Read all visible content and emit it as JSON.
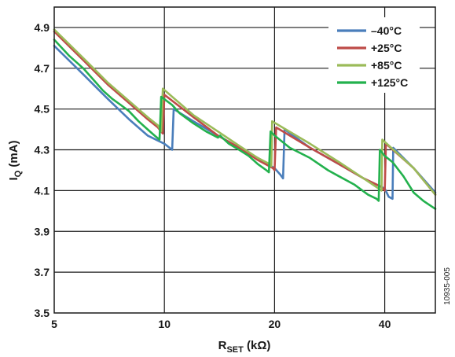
{
  "figure_id": "10935-005",
  "chart_data": {
    "type": "line",
    "title": "",
    "xlabel": {
      "main": "R",
      "sub": "SET",
      "unit": " (kΩ)"
    },
    "ylabel": {
      "main": "I",
      "sub": "Q",
      "unit": " (mA)"
    },
    "x_scale": "log2",
    "xlim": [
      5,
      55
    ],
    "ylim": [
      3.5,
      5.0
    ],
    "x_tick_labels": [
      "5",
      "10",
      "20",
      "40"
    ],
    "x_ticks": [
      5,
      10,
      20,
      40
    ],
    "y_tick_labels": [
      "3.5",
      "3.7",
      "3.9",
      "4.1",
      "4.3",
      "4.5",
      "4.7",
      "4.9"
    ],
    "y_ticks": [
      3.5,
      3.7,
      3.9,
      4.1,
      4.3,
      4.5,
      4.7,
      4.9
    ],
    "grid": true,
    "legend_position": "top-right",
    "series": [
      {
        "name": "–40°C",
        "color": "#4a7ebb",
        "points": [
          [
            5,
            4.81
          ],
          [
            6,
            4.67
          ],
          [
            7,
            4.55
          ],
          [
            8,
            4.45
          ],
          [
            9,
            4.37
          ],
          [
            10,
            4.33
          ],
          [
            10.5,
            4.3
          ],
          [
            10.6,
            4.5
          ],
          [
            12,
            4.44
          ],
          [
            14,
            4.37
          ],
          [
            16,
            4.31
          ],
          [
            18,
            4.26
          ],
          [
            20,
            4.21
          ],
          [
            20.7,
            4.18
          ],
          [
            21.1,
            4.16
          ],
          [
            21.3,
            4.4
          ],
          [
            25,
            4.31
          ],
          [
            30,
            4.23
          ],
          [
            35,
            4.16
          ],
          [
            40,
            4.11
          ],
          [
            41,
            4.07
          ],
          [
            42,
            4.06
          ],
          [
            42.2,
            4.31
          ],
          [
            48,
            4.21
          ],
          [
            55,
            4.09
          ]
        ]
      },
      {
        "name": "+25°C",
        "color": "#be4b48",
        "points": [
          [
            5,
            4.88
          ],
          [
            6,
            4.74
          ],
          [
            7,
            4.62
          ],
          [
            8,
            4.53
          ],
          [
            9,
            4.45
          ],
          [
            9.6,
            4.41
          ],
          [
            9.9,
            4.38
          ],
          [
            10,
            4.57
          ],
          [
            12,
            4.46
          ],
          [
            14,
            4.37
          ],
          [
            16,
            4.31
          ],
          [
            18,
            4.25
          ],
          [
            19.8,
            4.21
          ],
          [
            20,
            4.2
          ],
          [
            20.2,
            4.41
          ],
          [
            25,
            4.31
          ],
          [
            30,
            4.23
          ],
          [
            35,
            4.16
          ],
          [
            39,
            4.12
          ],
          [
            40,
            4.1
          ],
          [
            40.3,
            4.33
          ],
          [
            48,
            4.21
          ],
          [
            55,
            4.08
          ]
        ]
      },
      {
        "name": "+85°C",
        "color": "#9bbb59",
        "points": [
          [
            5,
            4.89
          ],
          [
            6,
            4.75
          ],
          [
            7,
            4.63
          ],
          [
            8,
            4.54
          ],
          [
            9,
            4.46
          ],
          [
            9.6,
            4.42
          ],
          [
            9.8,
            4.39
          ],
          [
            9.9,
            4.6
          ],
          [
            12,
            4.47
          ],
          [
            14,
            4.39
          ],
          [
            16,
            4.32
          ],
          [
            18,
            4.26
          ],
          [
            19.4,
            4.23
          ],
          [
            19.6,
            4.22
          ],
          [
            19.7,
            4.44
          ],
          [
            25,
            4.33
          ],
          [
            30,
            4.24
          ],
          [
            35,
            4.16
          ],
          [
            38.5,
            4.11
          ],
          [
            39.2,
            4.1
          ],
          [
            39.4,
            4.35
          ],
          [
            48,
            4.21
          ],
          [
            55,
            4.08
          ]
        ]
      },
      {
        "name": "+125°C",
        "color": "#23b14d",
        "points": [
          [
            5,
            4.84
          ],
          [
            5.5,
            4.76
          ],
          [
            6,
            4.7
          ],
          [
            6.5,
            4.63
          ],
          [
            6.8,
            4.59
          ],
          [
            7.2,
            4.55
          ],
          [
            7.6,
            4.52
          ],
          [
            8,
            4.49
          ],
          [
            8.5,
            4.44
          ],
          [
            9,
            4.4
          ],
          [
            9.4,
            4.37
          ],
          [
            9.7,
            4.35
          ],
          [
            9.8,
            4.56
          ],
          [
            10.5,
            4.52
          ],
          [
            11,
            4.48
          ],
          [
            12,
            4.43
          ],
          [
            13,
            4.39
          ],
          [
            14,
            4.36
          ],
          [
            14.2,
            4.37
          ],
          [
            15,
            4.33
          ],
          [
            16,
            4.3
          ],
          [
            17,
            4.27
          ],
          [
            18,
            4.23
          ],
          [
            19,
            4.2
          ],
          [
            19.3,
            4.19
          ],
          [
            19.5,
            4.39
          ],
          [
            20,
            4.37
          ],
          [
            22,
            4.31
          ],
          [
            25,
            4.26
          ],
          [
            28,
            4.2
          ],
          [
            30,
            4.17
          ],
          [
            33,
            4.13
          ],
          [
            36,
            4.08
          ],
          [
            38,
            4.06
          ],
          [
            38.5,
            4.05
          ],
          [
            38.8,
            4.3
          ],
          [
            40,
            4.27
          ],
          [
            42,
            4.24
          ],
          [
            45,
            4.17
          ],
          [
            48,
            4.09
          ],
          [
            51,
            4.05
          ],
          [
            55,
            4.01
          ]
        ]
      }
    ]
  }
}
